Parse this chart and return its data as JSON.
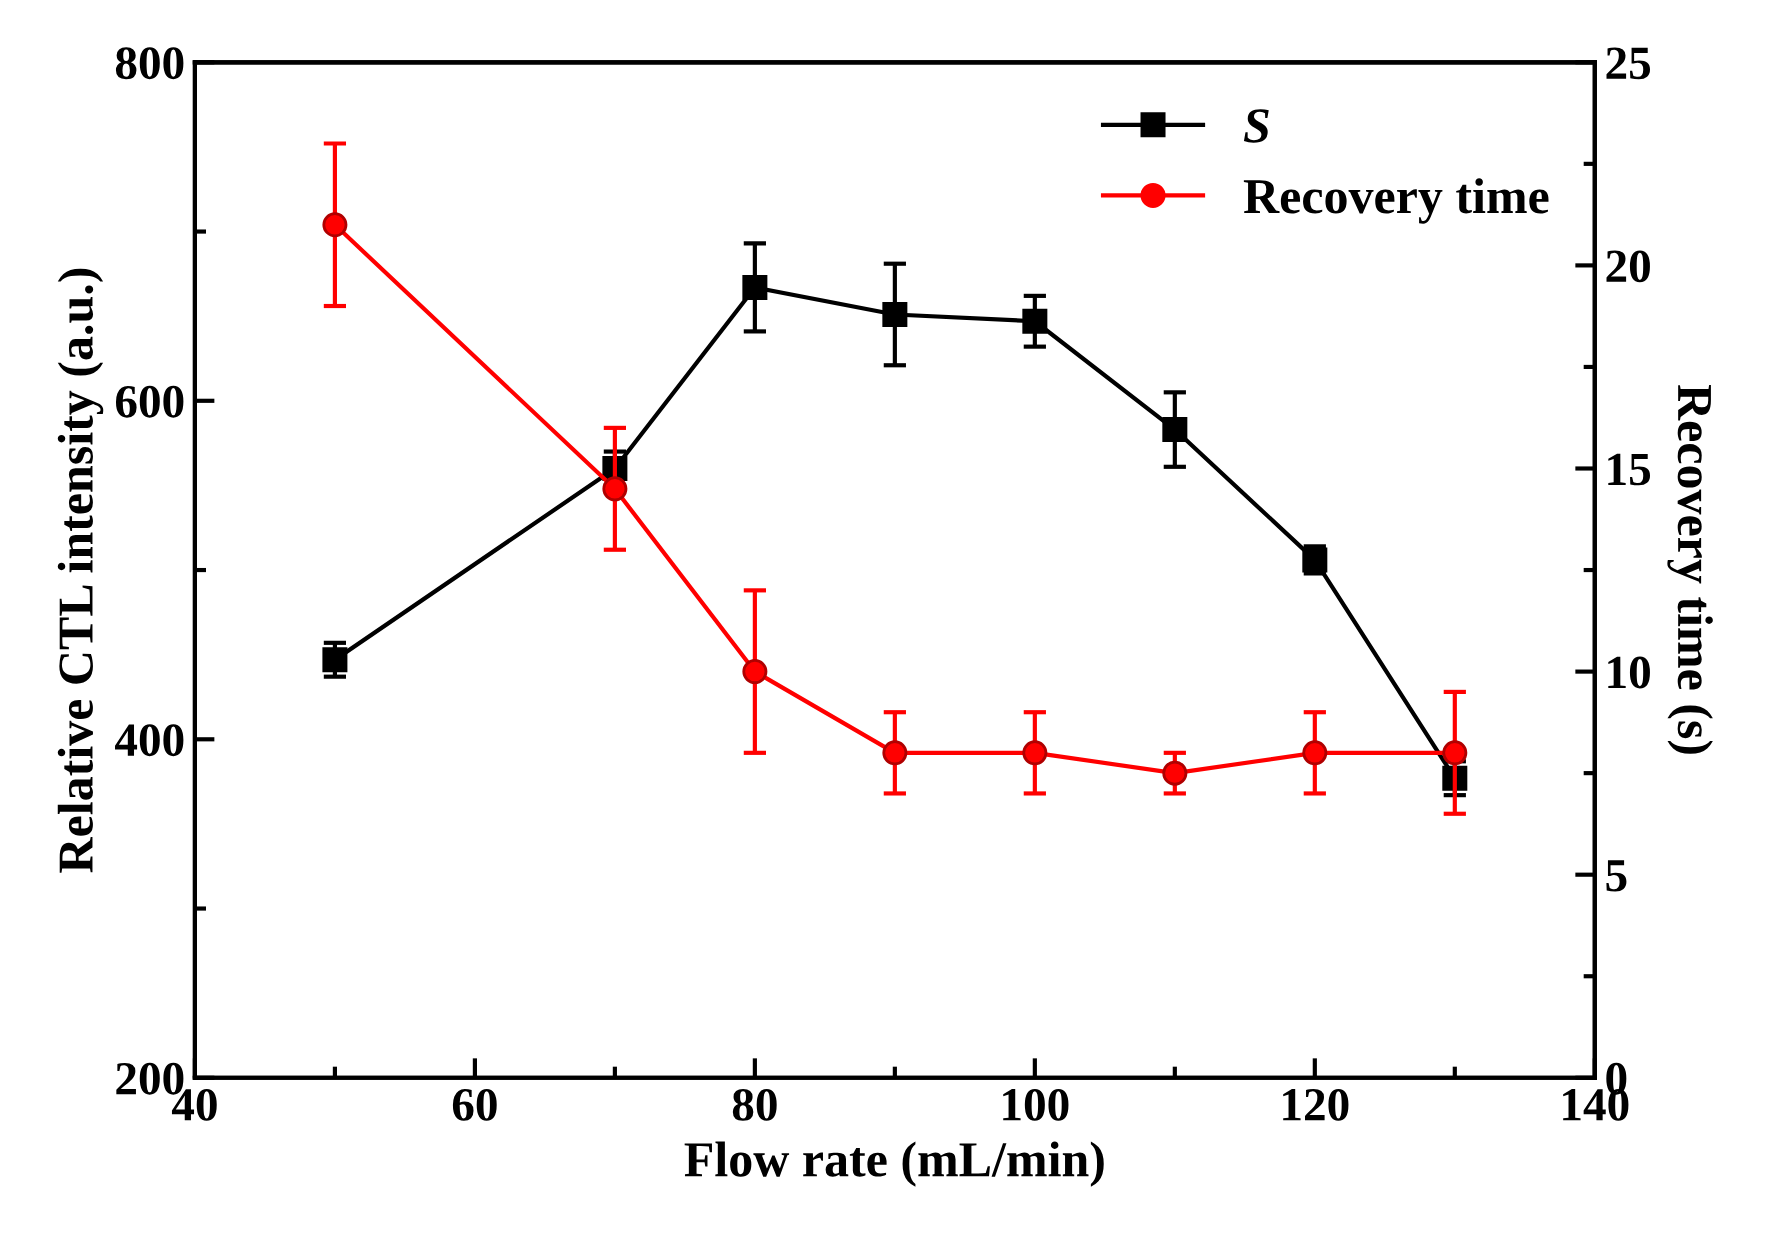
{
  "chart_data": {
    "type": "line",
    "xlabel": "Flow rate (mL/min)",
    "ylabel": "Relative CTL intensity (a.u.)",
    "y2label": "Recovery time (s)",
    "x": [
      50,
      70,
      80,
      90,
      100,
      110,
      120,
      130
    ],
    "xlim": [
      40,
      140
    ],
    "xticks": [
      40,
      60,
      80,
      100,
      120,
      140
    ],
    "ylim": [
      200,
      800
    ],
    "yticks": [
      200,
      400,
      600,
      800
    ],
    "y2lim": [
      0,
      25
    ],
    "y2ticks": [
      0,
      5,
      10,
      15,
      20,
      25
    ],
    "legend": "top right",
    "grid": false,
    "series": [
      {
        "name": "S",
        "color": "#000000",
        "marker": "square",
        "values": [
          447,
          560,
          667,
          651,
          647,
          583,
          506,
          377
        ],
        "errors": [
          10,
          10,
          26,
          30,
          15,
          22,
          8,
          10
        ]
      },
      {
        "name": "Recovery time",
        "color": "#ff0000",
        "marker": "circle",
        "axis": "y2",
        "values": [
          21,
          14.5,
          10,
          8,
          8,
          7.5,
          8,
          8
        ],
        "errors": [
          2,
          1.5,
          2,
          1,
          1,
          0.5,
          1,
          1.5
        ]
      }
    ]
  }
}
